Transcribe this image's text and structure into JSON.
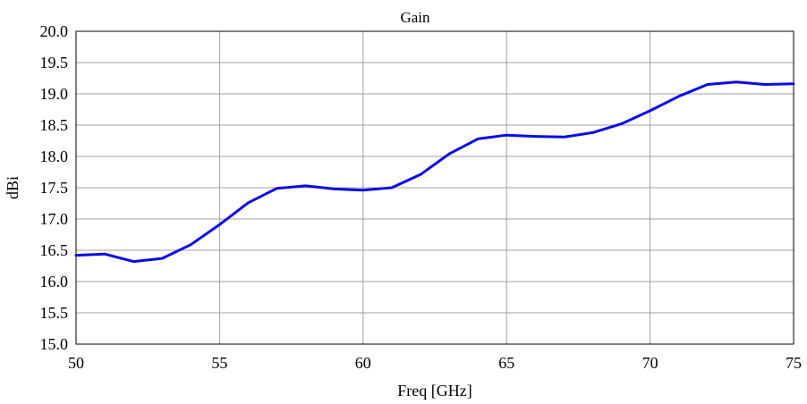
{
  "chart_data": {
    "type": "line",
    "title": "Gain",
    "xlabel": "Freq [GHz]",
    "ylabel": "dBi",
    "xlim": [
      50,
      75
    ],
    "ylim": [
      15.0,
      20.0
    ],
    "xticks": [
      50,
      55,
      60,
      65,
      70,
      75
    ],
    "xtick_labels": [
      "50",
      "55",
      "60",
      "65",
      "70",
      "75"
    ],
    "yticks": [
      15.0,
      15.5,
      16.0,
      16.5,
      17.0,
      17.5,
      18.0,
      18.5,
      19.0,
      19.5,
      20.0
    ],
    "ytick_labels": [
      "15.0",
      "15.5",
      "16.0",
      "16.5",
      "17.0",
      "17.5",
      "18.0",
      "18.5",
      "19.0",
      "19.5",
      "20.0"
    ],
    "grid": true,
    "legend": false,
    "series": [
      {
        "color": "#0a0ae6",
        "x": [
          50,
          51,
          52,
          53,
          54,
          55,
          56,
          57,
          58,
          59,
          60,
          61,
          62,
          63,
          64,
          65,
          66,
          67,
          68,
          69,
          70,
          71,
          72,
          73,
          74,
          75
        ],
        "y": [
          16.42,
          16.44,
          16.32,
          16.37,
          16.59,
          16.91,
          17.26,
          17.49,
          17.53,
          17.48,
          17.46,
          17.5,
          17.71,
          18.04,
          18.28,
          18.34,
          18.32,
          18.31,
          18.38,
          18.52,
          18.73,
          18.96,
          19.15,
          19.19,
          19.15,
          19.16
        ]
      }
    ]
  }
}
